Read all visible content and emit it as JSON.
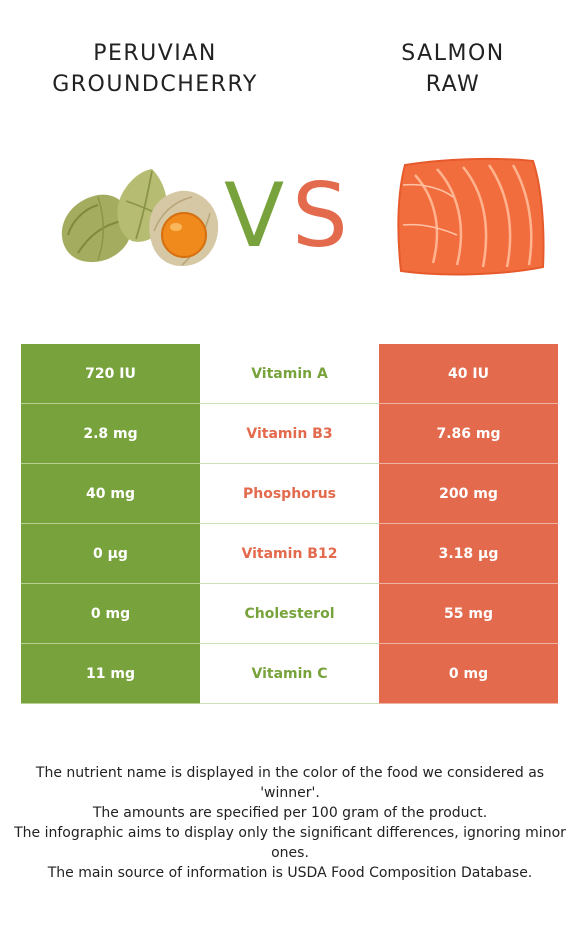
{
  "header": {
    "left_food": {
      "line1": "PERUVIAN",
      "line2": "GROUNDCHERRY"
    },
    "right_food": {
      "line1": "SALMON",
      "line2": "RAW"
    },
    "vs_v": "V",
    "vs_s": "S"
  },
  "colors": {
    "left_winner": "#78a33c",
    "right_winner": "#e36a4c"
  },
  "images": {
    "left": "groundcherry-illustration",
    "right": "salmon-fillet-illustration"
  },
  "table": {
    "rows": [
      {
        "left": "720 IU",
        "nutrient": "Vitamin A",
        "right": "40 IU",
        "winner": "left"
      },
      {
        "left": "2.8 mg",
        "nutrient": "Vitamin B3",
        "right": "7.86 mg",
        "winner": "right"
      },
      {
        "left": "40 mg",
        "nutrient": "Phosphorus",
        "right": "200 mg",
        "winner": "right"
      },
      {
        "left": "0 µg",
        "nutrient": "Vitamin B12",
        "right": "3.18 µg",
        "winner": "right"
      },
      {
        "left": "0 mg",
        "nutrient": "Cholesterol",
        "right": "55 mg",
        "winner": "left"
      },
      {
        "left": "11 mg",
        "nutrient": "Vitamin C",
        "right": "0 mg",
        "winner": "left"
      }
    ]
  },
  "footnotes": {
    "line1": "The nutrient name is displayed in the color of the food we considered as 'winner'.",
    "line2": "The amounts are specified per 100 gram of the product.",
    "line3": "The infographic aims to display only the significant differences, ignoring minor ones.",
    "line4": "The main source of information is USDA Food Composition Database."
  }
}
